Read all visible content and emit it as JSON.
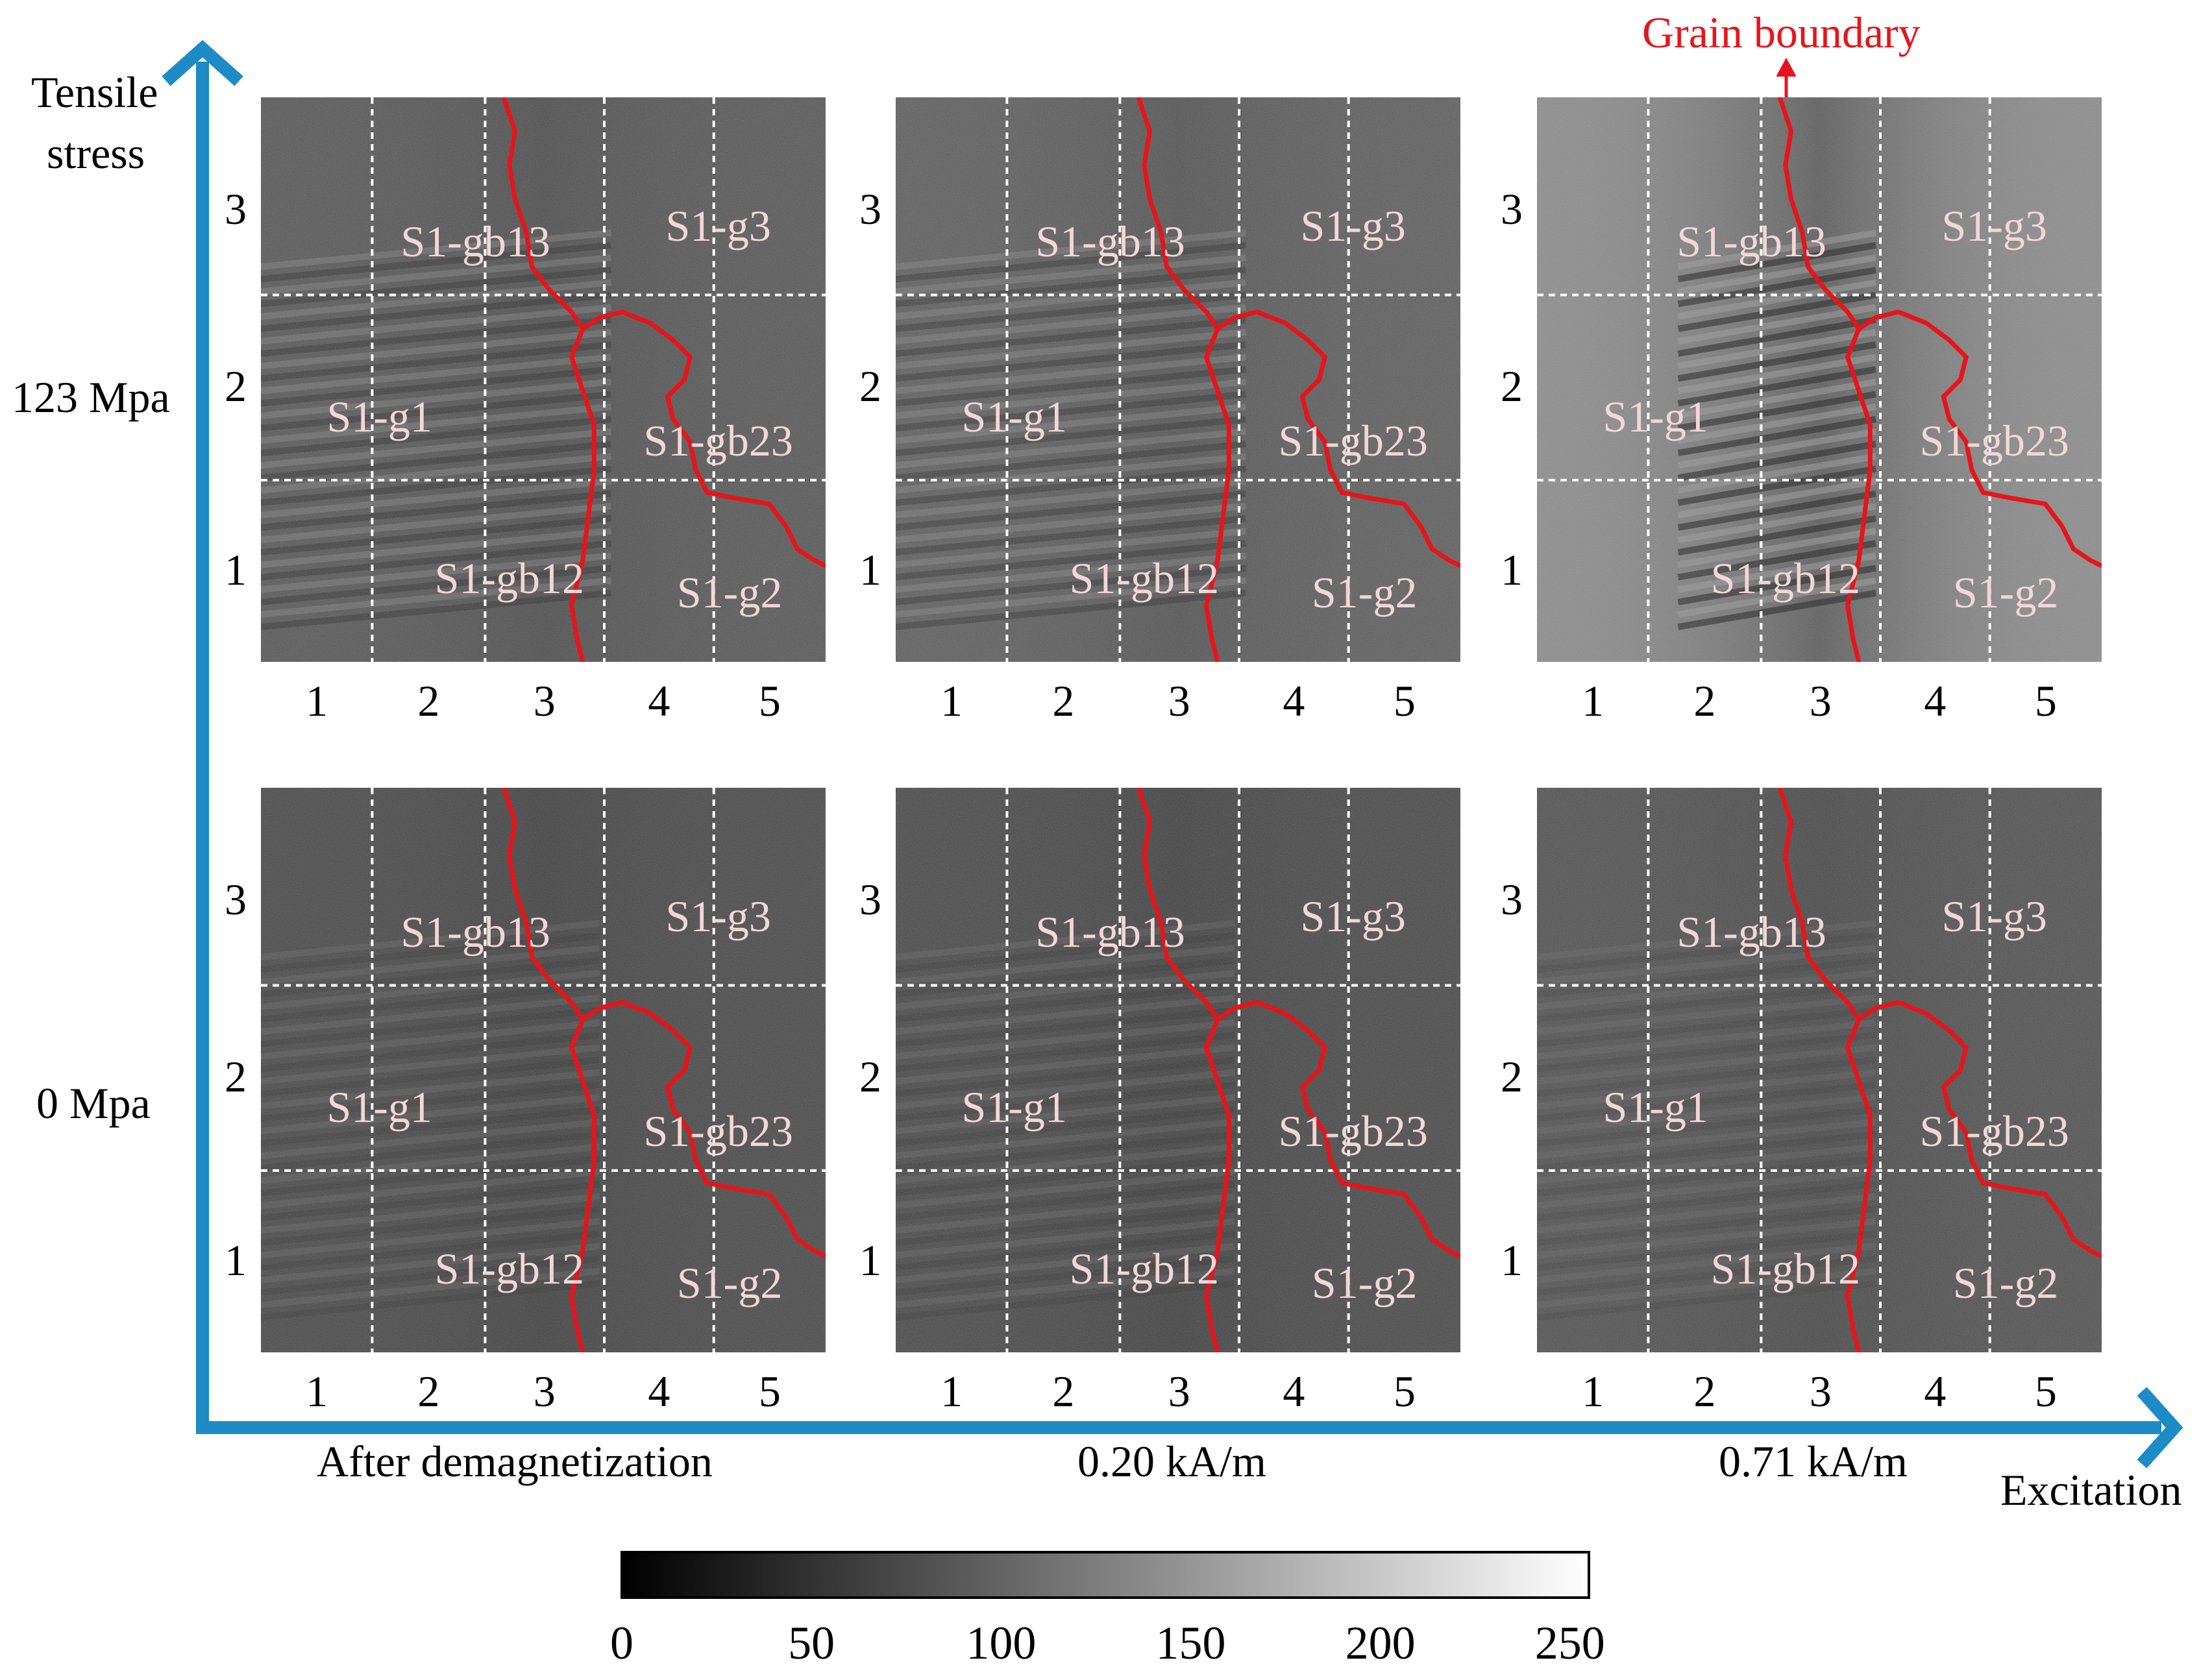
{
  "axes": {
    "y_label_lines": [
      "Tensile",
      "stress"
    ],
    "x_label": "Excitation"
  },
  "annotation": {
    "grain_boundary": "Grain boundary"
  },
  "rows": [
    {
      "stress": "123 Mpa"
    },
    {
      "stress": "0 Mpa"
    }
  ],
  "columns": [
    {
      "condition": "After demagnetization"
    },
    {
      "condition": "0.20 kA/m"
    },
    {
      "condition": "0.71 kA/m"
    }
  ],
  "grid": {
    "x_ticks": [
      "1",
      "2",
      "3",
      "4",
      "5"
    ],
    "y_ticks": [
      "3",
      "2",
      "1"
    ]
  },
  "region_labels": {
    "gb13": "S1-gb13",
    "g3": "S1-g3",
    "g1": "S1-g1",
    "gb23": "S1-gb23",
    "gb12": "S1-gb12",
    "g2": "S1-g2"
  },
  "colorbar": {
    "ticks": [
      "0",
      "50",
      "100",
      "150",
      "200",
      "250"
    ],
    "min": 0,
    "max": 255
  },
  "colors": {
    "axis_arrow": "#1c8bc6",
    "grain_boundary": "#e8141b",
    "grid_lines": "#ffffff",
    "label_text": "#f3d6d6"
  },
  "panel_tones": {
    "row_123": [
      "#555555",
      "#5c5c5c",
      "#8b8b8b"
    ],
    "row_0": [
      "#464646",
      "#464646",
      "#4f4f4f"
    ]
  }
}
